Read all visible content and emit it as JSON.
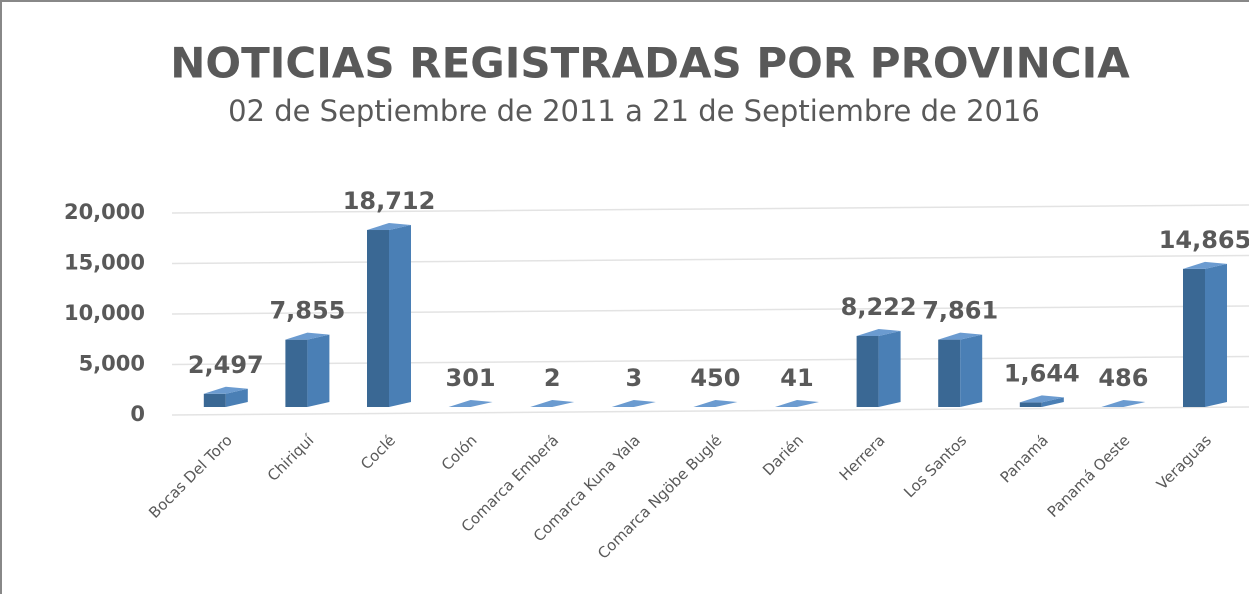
{
  "chart_data": {
    "type": "bar3d",
    "title": "NOTICIAS REGISTRADAS POR PROVINCIA",
    "subtitle": "02 de Septiembre de 2011 a 21 de Septiembre de 2016",
    "categories": [
      "Bocas Del Toro",
      "Chiriquí",
      "Coclé",
      "Colón",
      "Comarca Emberá",
      "Comarca Kuna Yala",
      "Comarca Ngöbe Buglé",
      "Darién",
      "Herrera",
      "Los Santos",
      "Panamá",
      "Panamá Oeste",
      "Veraguas"
    ],
    "values": [
      2497,
      7855,
      18712,
      301,
      2,
      3,
      450,
      41,
      8222,
      7861,
      1644,
      486,
      14865
    ],
    "value_labels": [
      "2,497",
      "7,855",
      "18,712",
      "301",
      "2",
      "3",
      "450",
      "41",
      "8,222",
      "7,861",
      "1,644",
      "486",
      "14,865"
    ],
    "color": "#4a7fb5",
    "ylim": [
      0,
      20000
    ],
    "yticks": [
      0,
      {
        "value": 5000,
        "label": "5,000"
      },
      {
        "value": 10000,
        "label": "10,000"
      },
      {
        "value": 15000,
        "label": "15,000"
      },
      {
        "value": 20000,
        "label": "20,000"
      }
    ],
    "grid": true
  }
}
